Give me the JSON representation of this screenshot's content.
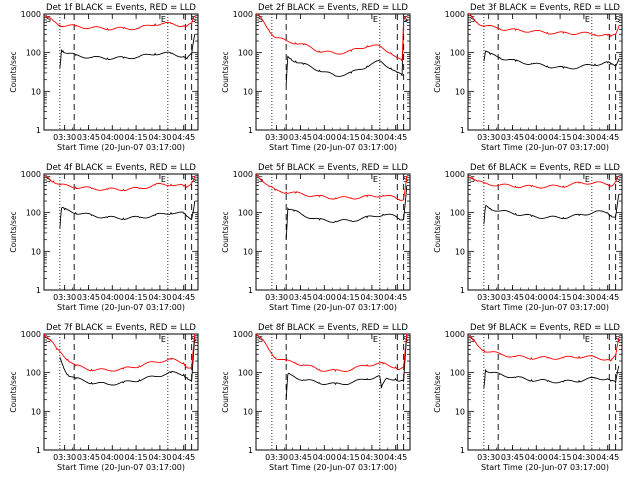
{
  "common": {
    "xlabel": "Start Time (20-Jun-07 03:17:00)",
    "ylabel": "Counts/sec",
    "x_ticks": [
      "03:30",
      "03:45",
      "04:00",
      "04:15",
      "04:30",
      "04:45"
    ],
    "y_ticks": [
      "1",
      "10",
      "100",
      "1000"
    ],
    "marker_S": "S",
    "marker_E": "E"
  },
  "colors": {
    "events": "#000000",
    "lld": "#ff0000"
  },
  "chart_data": [
    {
      "type": "line",
      "title": "Det 1f BLACK = Events, RED = LLD",
      "y_scale": "log",
      "ylim": [
        1,
        1000
      ],
      "x_unit": "minutes after 03:17:00",
      "xlim": [
        0,
        97
      ],
      "series": [
        {
          "key": "events",
          "x": [
            10,
            11,
            12,
            15,
            20,
            30,
            40,
            50,
            60,
            70,
            80,
            88,
            90,
            93,
            95
          ],
          "values": [
            40,
            120,
            110,
            95,
            85,
            75,
            72,
            73,
            78,
            95,
            95,
            80,
            70,
            90,
            300
          ]
        },
        {
          "key": "lld",
          "x": [
            0,
            2,
            6,
            10,
            20,
            30,
            40,
            50,
            60,
            70,
            80,
            88,
            90,
            93,
            95
          ],
          "values": [
            900,
            800,
            650,
            520,
            480,
            440,
            420,
            420,
            430,
            550,
            560,
            500,
            480,
            550,
            900
          ]
        }
      ]
    },
    {
      "type": "line",
      "title": "Det 2f BLACK = Events, RED = LLD",
      "y_scale": "log",
      "ylim": [
        1,
        1000
      ],
      "x_unit": "minutes after 03:17:00",
      "xlim": [
        0,
        97
      ],
      "series": [
        {
          "key": "events",
          "x": [
            19,
            20,
            22,
            25,
            30,
            40,
            50,
            60,
            70,
            78,
            85,
            89,
            92,
            93,
            95
          ],
          "values": [
            15,
            80,
            70,
            60,
            50,
            35,
            25,
            30,
            45,
            60,
            40,
            30,
            25,
            600,
            700
          ]
        },
        {
          "key": "lld",
          "x": [
            0,
            4,
            8,
            12,
            19,
            25,
            30,
            40,
            50,
            60,
            70,
            78,
            85,
            89,
            92,
            93,
            95
          ],
          "values": [
            1000,
            700,
            400,
            250,
            200,
            180,
            160,
            110,
            95,
            110,
            150,
            145,
            100,
            70,
            60,
            700,
            900
          ]
        }
      ]
    },
    {
      "type": "line",
      "title": "Det 3f BLACK = Events, RED = LLD",
      "y_scale": "log",
      "ylim": [
        1,
        1000
      ],
      "x_unit": "minutes after 03:17:00",
      "xlim": [
        0,
        97
      ],
      "series": [
        {
          "key": "events",
          "x": [
            10,
            11,
            14,
            20,
            30,
            40,
            50,
            60,
            70,
            80,
            88,
            90,
            93,
            95
          ],
          "values": [
            60,
            110,
            90,
            75,
            60,
            52,
            45,
            40,
            42,
            50,
            55,
            50,
            45,
            70
          ]
        },
        {
          "key": "lld",
          "x": [
            0,
            3,
            6,
            10,
            20,
            30,
            40,
            50,
            60,
            70,
            80,
            88,
            90,
            93,
            95
          ],
          "values": [
            1000,
            800,
            600,
            500,
            420,
            380,
            360,
            330,
            320,
            320,
            300,
            280,
            260,
            300,
            500
          ]
        }
      ]
    },
    {
      "type": "line",
      "title": "Det 4f BLACK = Events, RED = LLD",
      "y_scale": "log",
      "ylim": [
        1,
        1000
      ],
      "x_unit": "minutes after 03:17:00",
      "xlim": [
        0,
        97
      ],
      "series": [
        {
          "key": "events",
          "x": [
            10,
            11,
            13,
            20,
            30,
            40,
            50,
            60,
            70,
            80,
            88,
            90,
            93,
            95
          ],
          "values": [
            40,
            130,
            120,
            100,
            85,
            75,
            72,
            75,
            85,
            100,
            95,
            80,
            70,
            200
          ]
        },
        {
          "key": "lld",
          "x": [
            0,
            3,
            6,
            10,
            20,
            30,
            40,
            50,
            60,
            70,
            80,
            88,
            90,
            93,
            95
          ],
          "values": [
            900,
            800,
            650,
            520,
            460,
            420,
            400,
            400,
            420,
            520,
            540,
            480,
            450,
            600,
            900
          ]
        }
      ]
    },
    {
      "type": "line",
      "title": "Det 5f BLACK = Events, RED = LLD",
      "y_scale": "log",
      "ylim": [
        1,
        1000
      ],
      "x_unit": "minutes after 03:17:00",
      "xlim": [
        0,
        97
      ],
      "series": [
        {
          "key": "events",
          "x": [
            19,
            20,
            24,
            30,
            40,
            50,
            60,
            70,
            80,
            88,
            90,
            93,
            95
          ],
          "values": [
            20,
            130,
            110,
            85,
            65,
            60,
            62,
            75,
            90,
            80,
            70,
            70,
            500
          ]
        },
        {
          "key": "lld",
          "x": [
            0,
            4,
            8,
            12,
            19,
            25,
            30,
            40,
            50,
            60,
            70,
            80,
            88,
            90,
            93,
            95
          ],
          "values": [
            1000,
            700,
            480,
            380,
            340,
            320,
            300,
            260,
            240,
            240,
            260,
            280,
            240,
            220,
            230,
            900
          ]
        }
      ]
    },
    {
      "type": "line",
      "title": "Det 6f BLACK = Events, RED = LLD",
      "y_scale": "log",
      "ylim": [
        1,
        1000
      ],
      "x_unit": "minutes after 03:17:00",
      "xlim": [
        0,
        97
      ],
      "series": [
        {
          "key": "events",
          "x": [
            10,
            11,
            14,
            20,
            30,
            40,
            50,
            60,
            70,
            80,
            88,
            90,
            93,
            95
          ],
          "values": [
            50,
            150,
            130,
            110,
            95,
            80,
            75,
            75,
            85,
            105,
            100,
            85,
            80,
            300
          ]
        },
        {
          "key": "lld",
          "x": [
            0,
            3,
            6,
            10,
            20,
            30,
            40,
            50,
            60,
            70,
            80,
            88,
            90,
            93,
            95
          ],
          "values": [
            900,
            800,
            650,
            560,
            520,
            480,
            470,
            470,
            490,
            580,
            600,
            540,
            500,
            650,
            900
          ]
        }
      ]
    },
    {
      "type": "line",
      "title": "Det 7f BLACK = Events, RED = LLD",
      "y_scale": "log",
      "ylim": [
        1,
        1000
      ],
      "x_unit": "minutes after 03:17:00",
      "xlim": [
        0,
        97
      ],
      "series": [
        {
          "key": "events",
          "x": [
            10,
            12,
            15,
            20,
            30,
            40,
            50,
            60,
            70,
            80,
            88,
            90,
            93,
            95
          ],
          "values": [
            250,
            150,
            90,
            70,
            55,
            50,
            55,
            65,
            80,
            100,
            90,
            75,
            60,
            800
          ]
        },
        {
          "key": "lld",
          "x": [
            0,
            4,
            8,
            10,
            15,
            20,
            30,
            40,
            50,
            60,
            70,
            80,
            88,
            90,
            93,
            95
          ],
          "values": [
            1000,
            700,
            400,
            350,
            220,
            150,
            120,
            115,
            125,
            150,
            190,
            220,
            180,
            140,
            130,
            1000
          ]
        }
      ]
    },
    {
      "type": "line",
      "title": "Det 8f BLACK = Events, RED = LLD",
      "y_scale": "log",
      "ylim": [
        1,
        1000
      ],
      "x_unit": "minutes after 03:17:00",
      "xlim": [
        0,
        97
      ],
      "series": [
        {
          "key": "events",
          "x": [
            19,
            20,
            24,
            30,
            40,
            50,
            60,
            70,
            78,
            79,
            82,
            88,
            90,
            93,
            95
          ],
          "values": [
            20,
            90,
            80,
            65,
            55,
            50,
            55,
            70,
            80,
            40,
            70,
            70,
            60,
            60,
            900
          ]
        },
        {
          "key": "lld",
          "x": [
            0,
            4,
            8,
            12,
            19,
            25,
            30,
            40,
            50,
            60,
            70,
            80,
            88,
            90,
            93,
            95
          ],
          "values": [
            1000,
            700,
            400,
            250,
            200,
            180,
            160,
            120,
            110,
            120,
            160,
            170,
            140,
            120,
            130,
            1000
          ]
        }
      ]
    },
    {
      "type": "line",
      "title": "Det 9f BLACK = Events, RED = LLD",
      "y_scale": "log",
      "ylim": [
        1,
        1000
      ],
      "x_unit": "minutes after 03:17:00",
      "xlim": [
        0,
        97
      ],
      "series": [
        {
          "key": "events",
          "x": [
            10,
            11,
            14,
            20,
            30,
            40,
            50,
            60,
            70,
            80,
            88,
            90,
            93,
            95
          ],
          "values": [
            40,
            120,
            100,
            90,
            75,
            65,
            60,
            58,
            62,
            72,
            70,
            60,
            55,
            150
          ]
        },
        {
          "key": "lld",
          "x": [
            0,
            3,
            6,
            10,
            20,
            30,
            40,
            50,
            60,
            70,
            80,
            88,
            90,
            93,
            95
          ],
          "values": [
            900,
            700,
            500,
            380,
            300,
            260,
            240,
            240,
            240,
            260,
            250,
            220,
            200,
            260,
            800
          ]
        }
      ]
    }
  ]
}
